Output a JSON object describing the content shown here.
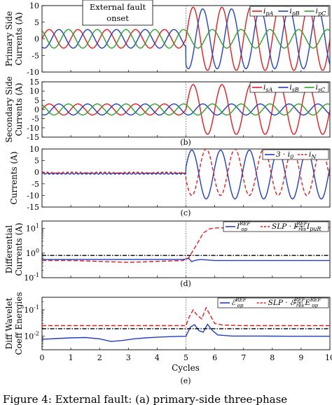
{
  "figure": {
    "caption": "Figure 4: External fault: (a) primary-side three-phase",
    "xlabel": "Cycles",
    "annotation_text": [
      "External fault",
      "onset"
    ]
  },
  "chart_data": [
    {
      "type": "line",
      "panel_label": "",
      "ylabel": [
        "Primary Side",
        "Currents (A)"
      ],
      "xlim": [
        0,
        10
      ],
      "ylim": [
        -10,
        10
      ],
      "yticks": [
        -10,
        -5,
        0,
        5,
        10
      ],
      "xticks": [],
      "legend_position": "top-right",
      "series": [
        {
          "name": "i_pA",
          "legend_main": "i",
          "legend_sub": "pA",
          "color": "#e41a1c",
          "pre_amp": 2.8,
          "post_amp": 9.5,
          "freq": 1,
          "phase_deg": 0
        },
        {
          "name": "i_pB",
          "legend_main": "i",
          "legend_sub": "pB",
          "color": "#1f3fbf",
          "pre_amp": 2.8,
          "post_amp": 9.0,
          "freq": 1,
          "phase_deg": -120
        },
        {
          "name": "i_pC",
          "legend_main": "i",
          "legend_sub": "pC",
          "color": "#2ca02c",
          "pre_amp": 2.8,
          "post_amp": 2.8,
          "freq": 1,
          "phase_deg": 120
        }
      ],
      "fault_onset": 5
    },
    {
      "type": "line",
      "panel_label": "(b)",
      "ylabel": [
        "Secondary Side",
        "Currents (A)"
      ],
      "xlim": [
        0,
        10
      ],
      "ylim": [
        -15,
        15
      ],
      "yticks": [
        -15,
        -10,
        -5,
        0,
        5,
        10,
        15
      ],
      "xticks": [],
      "legend_position": "top-right",
      "series": [
        {
          "name": "i_sA",
          "legend_main": "i",
          "legend_sub": "sA",
          "color": "#e41a1c",
          "pre_amp": 3.0,
          "post_amp": 13.5,
          "freq": 1,
          "phase_deg": 0
        },
        {
          "name": "i_sB",
          "legend_main": "i",
          "legend_sub": "sB",
          "color": "#1f3fbf",
          "pre_amp": 3.0,
          "post_amp": 3.0,
          "freq": 1,
          "phase_deg": -120
        },
        {
          "name": "i_sC",
          "legend_main": "i",
          "legend_sub": "sC",
          "color": "#2ca02c",
          "pre_amp": 3.0,
          "post_amp": 3.0,
          "freq": 1,
          "phase_deg": 120
        }
      ],
      "fault_onset": 5
    },
    {
      "type": "line",
      "panel_label": "(c)",
      "ylabel": [
        "Currents (A)"
      ],
      "xlim": [
        0,
        10
      ],
      "ylim": [
        -15,
        10
      ],
      "yticks": [
        -15,
        -10,
        -5,
        0,
        5,
        10
      ],
      "xticks": [],
      "legend_position": "top-right",
      "series": [
        {
          "name": "3·i_0",
          "legend_main": "3 · i",
          "legend_sub": "0",
          "color": "#1f3fbf",
          "dash": "",
          "pre_level": -0.6,
          "post_amp": 10.5,
          "post_offset": -1.0,
          "freq": 1,
          "phase_deg": 0
        },
        {
          "name": "i_N",
          "legend_main": "i",
          "legend_sub": "N",
          "color": "#e41a1c",
          "dash": "5,3",
          "pre_level": -0.2,
          "post_amp": 10.0,
          "post_offset": 0,
          "freq": 1,
          "phase_deg": 180
        }
      ],
      "fault_onset": 5
    },
    {
      "type": "line",
      "panel_label": "(d)",
      "ylabel": [
        "Differential",
        "Currents (A)"
      ],
      "xlim": [
        0,
        10
      ],
      "yscale": "log",
      "ylim": [
        0.1,
        20
      ],
      "yticks": [
        {
          "value": 0.1,
          "base": "10",
          "exp": "-1"
        },
        {
          "value": 1,
          "base": "10",
          "exp": "0"
        },
        {
          "value": 10,
          "base": "10",
          "exp": "1"
        }
      ],
      "xticks": [],
      "legend_position": "top-right",
      "series": [
        {
          "name": "I_op^REF",
          "legend_parts": [
            [
              "I",
              "op",
              "REF"
            ]
          ],
          "color": "#1f3fbf",
          "dash": "",
          "points": [
            [
              0,
              0.55
            ],
            [
              2,
              0.55
            ],
            [
              4,
              0.55
            ],
            [
              4.9,
              0.55
            ],
            [
              5.1,
              0.6
            ],
            [
              5.2,
              0.45
            ],
            [
              5.3,
              0.5
            ],
            [
              5.5,
              0.55
            ],
            [
              6,
              0.5
            ],
            [
              8,
              0.5
            ],
            [
              10,
              0.5
            ]
          ]
        },
        {
          "name": "SLP·I_res^REF",
          "legend_parts": [
            [
              "SLP · I",
              "res",
              "REF"
            ]
          ],
          "color": "#e41a1c",
          "dash": "6,3",
          "points": [
            [
              0,
              0.5
            ],
            [
              1,
              0.5
            ],
            [
              2,
              0.46
            ],
            [
              3,
              0.42
            ],
            [
              4,
              0.46
            ],
            [
              4.9,
              0.5
            ],
            [
              5.1,
              0.65
            ],
            [
              5.4,
              2.5
            ],
            [
              5.6,
              6.5
            ],
            [
              5.8,
              9.5
            ],
            [
              6,
              10.5
            ],
            [
              7,
              10.8
            ],
            [
              8,
              10.8
            ],
            [
              10,
              10.8
            ]
          ]
        },
        {
          "name": "I_puR",
          "legend_parts": [
            [
              "I",
              "puR",
              ""
            ]
          ],
          "color": "#000000",
          "dash": "6,2,1.5,2",
          "points": [
            [
              0,
              0.8
            ],
            [
              10,
              0.8
            ]
          ]
        }
      ],
      "fault_onset": 5
    },
    {
      "type": "line",
      "panel_label": "(e)",
      "ylabel": [
        "Diff Wavelet",
        "Coeff Energies"
      ],
      "xlim": [
        0,
        10
      ],
      "yscale": "log",
      "ylim": [
        0.003,
        0.3
      ],
      "yticks": [
        {
          "value": 0.01,
          "base": "10",
          "exp": "-2"
        },
        {
          "value": 0.1,
          "base": "10",
          "exp": "-1"
        }
      ],
      "xticks": [
        0,
        1,
        2,
        3,
        4,
        5,
        6,
        7,
        8,
        9,
        10
      ],
      "legend_position": "top-right",
      "series": [
        {
          "name": "E_op^REF",
          "legend_parts": [
            [
              "ℰ",
              "op",
              "REF"
            ]
          ],
          "color": "#1f3fbf",
          "dash": "",
          "points": [
            [
              0,
              0.0075
            ],
            [
              0.5,
              0.008
            ],
            [
              1,
              0.0085
            ],
            [
              1.5,
              0.0088
            ],
            [
              2,
              0.0078
            ],
            [
              2.4,
              0.0062
            ],
            [
              2.8,
              0.0068
            ],
            [
              3.2,
              0.0078
            ],
            [
              3.6,
              0.0085
            ],
            [
              4,
              0.009
            ],
            [
              4.5,
              0.0095
            ],
            [
              5,
              0.0098
            ],
            [
              5.15,
              0.022
            ],
            [
              5.3,
              0.027
            ],
            [
              5.45,
              0.016
            ],
            [
              5.6,
              0.014
            ],
            [
              5.75,
              0.028
            ],
            [
              5.9,
              0.017
            ],
            [
              6.1,
              0.011
            ],
            [
              6.6,
              0.01
            ],
            [
              7.5,
              0.01
            ],
            [
              8.5,
              0.0098
            ],
            [
              9.5,
              0.0098
            ],
            [
              10,
              0.0098
            ]
          ]
        },
        {
          "name": "SLP·E_res^REF",
          "legend_parts": [
            [
              "SLP · ℰ",
              "res",
              "REF"
            ]
          ],
          "color": "#e41a1c",
          "dash": "6,3",
          "points": [
            [
              0,
              0.025
            ],
            [
              1,
              0.025
            ],
            [
              2,
              0.025
            ],
            [
              3,
              0.025
            ],
            [
              4,
              0.025
            ],
            [
              5,
              0.025
            ],
            [
              5.1,
              0.05
            ],
            [
              5.25,
              0.1
            ],
            [
              5.4,
              0.06
            ],
            [
              5.55,
              0.045
            ],
            [
              5.7,
              0.12
            ],
            [
              5.85,
              0.06
            ],
            [
              6,
              0.03
            ],
            [
              6.3,
              0.026
            ],
            [
              7,
              0.025
            ],
            [
              8,
              0.025
            ],
            [
              9,
              0.025
            ],
            [
              10,
              0.025
            ]
          ]
        },
        {
          "name": "E_op^REF",
          "legend_parts": [
            [
              "E",
              "op",
              "REF"
            ]
          ],
          "color": "#000000",
          "dash": "6,2,1.5,2",
          "points": [
            [
              0,
              0.019
            ],
            [
              10,
              0.019
            ]
          ]
        }
      ],
      "fault_onset": 5
    }
  ]
}
